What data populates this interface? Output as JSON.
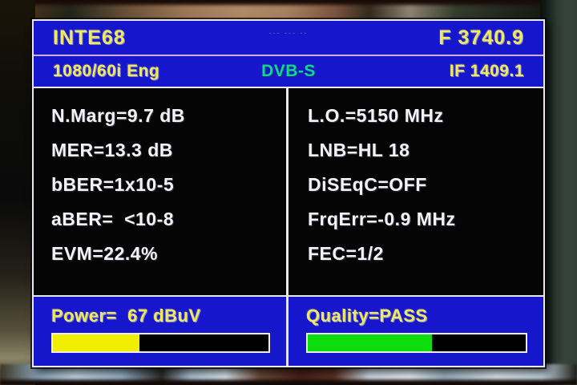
{
  "header": {
    "channel_name": "INTE68",
    "center_marks": "--- --- --",
    "frequency": "F 3740.9",
    "video_format": "1080/60i Eng",
    "system": "DVB-S",
    "if_frequency": "IF 1409.1"
  },
  "metrics": {
    "left": [
      "N.Marg=9.7 dB",
      "MER=13.3 dB",
      "bBER=1x10-5",
      "aBER=  <10-8",
      "EVM=22.4%"
    ],
    "right": [
      "L.O.=5150 MHz",
      "LNB=HL 18",
      "DiSEqC=OFF",
      "FrqErr=-0.9 MHz",
      "FEC=1/2"
    ]
  },
  "footer": {
    "power": {
      "label": "Power=  67 dBuV",
      "value": 67,
      "unit": "dBuV",
      "percent": 40,
      "color": "#f2ee00"
    },
    "quality": {
      "label": "Quality=PASS",
      "status": "PASS",
      "percent": 57,
      "color": "#0ddc0d"
    }
  },
  "colors": {
    "panel_blue": "#1616cd",
    "panel_black": "#050505",
    "text_yellow": "#efe95e",
    "text_white": "#f3f3f7",
    "dvbs_green": "#0fd894",
    "border_white": "#e9e9ef",
    "separator_pink": "#d9a9d9",
    "bar_yellow": "#f2ee00",
    "bar_green": "#0ddc0d"
  }
}
